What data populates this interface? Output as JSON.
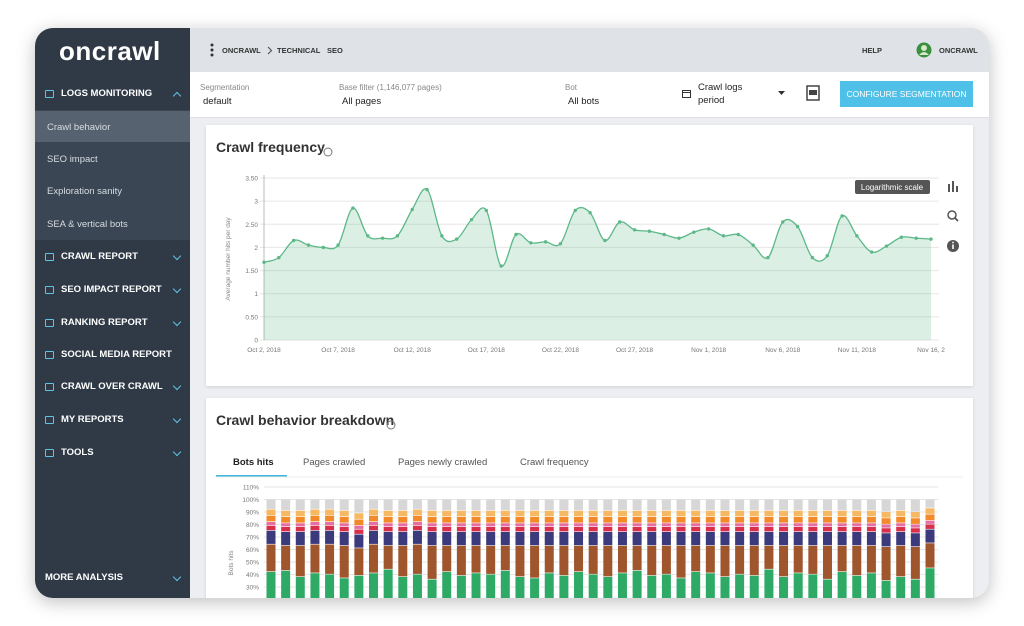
{
  "sidebar": {
    "logo": "oncrawl",
    "sections": [
      {
        "label": "LOGS MONITORING",
        "items": [
          "Crawl behavior",
          "SEO impact",
          "Exploration sanity",
          "SEA & vertical bots"
        ]
      },
      {
        "label": "CRAWL REPORT"
      },
      {
        "label": "SEO IMPACT REPORT"
      },
      {
        "label": "RANKING REPORT"
      },
      {
        "label": "SOCIAL MEDIA REPORT"
      },
      {
        "label": "CRAWL OVER CRAWL"
      },
      {
        "label": "MY REPORTS"
      },
      {
        "label": "TOOLS"
      }
    ],
    "footer": "MORE ANALYSIS"
  },
  "header": {
    "breadcrumb": [
      "ONCRAWL",
      "TECHNICAL",
      "SEO"
    ],
    "help": "HELP",
    "user": "ONCRAWL"
  },
  "filters": {
    "segmentation": {
      "label": "Segmentation",
      "value": "default"
    },
    "base_filter": {
      "label": "Base filter (1,146,077 pages)",
      "value": "All pages"
    },
    "bot": {
      "label": "Bot",
      "value": "All bots"
    },
    "period": "Crawl logs period",
    "button": "CONFIGURE SEGMENTATION"
  },
  "crawl_frequency": {
    "type": "line",
    "title": "Crawl frequency",
    "y_label": "Average number hits per day",
    "tooltip": "Logarithmic scale",
    "categories": [
      "Oct 2, 2018",
      null,
      null,
      null,
      null,
      "Oct 7, 2018",
      null,
      null,
      null,
      null,
      "Oct 12, 2018",
      null,
      null,
      null,
      null,
      "Oct 17, 2018",
      null,
      null,
      null,
      null,
      "Oct 22, 2018",
      null,
      null,
      null,
      null,
      "Oct 27, 2018",
      null,
      null,
      null,
      null,
      "Nov 1, 2018",
      null,
      null,
      null,
      null,
      "Nov 6, 2018",
      null,
      null,
      null,
      null,
      "Nov 11, 2018",
      null,
      null,
      null,
      null,
      "Nov 16, 2"
    ],
    "series": [
      {
        "color": "#5cb887",
        "values": [
          1.68,
          1.78,
          2.15,
          2.05,
          2.0,
          2.05,
          2.85,
          2.25,
          2.2,
          2.25,
          2.82,
          3.25,
          2.25,
          2.18,
          2.6,
          2.8,
          1.6,
          2.28,
          2.1,
          2.12,
          2.08,
          2.8,
          2.75,
          2.15,
          2.55,
          2.38,
          2.35,
          2.28,
          2.2,
          2.33,
          2.4,
          2.25,
          2.28,
          2.05,
          1.78,
          2.55,
          2.45,
          1.78,
          1.82,
          2.68,
          2.25,
          1.9,
          2.03,
          2.22,
          2.2,
          2.18
        ]
      }
    ],
    "ylim": [
      0,
      3.5
    ],
    "yticks": [
      0,
      {
        "value": 0.5,
        "label": "0.50"
      },
      1,
      {
        "value": 1.5,
        "label": "1.50"
      },
      2,
      {
        "value": 2.5,
        "label": "2.50"
      },
      3,
      {
        "value": 3.5,
        "label": "3.50"
      }
    ],
    "grid": true
  },
  "crawl_behavior_breakdown": {
    "type": "stacked_bar",
    "title": "Crawl behavior breakdown",
    "y_label": "Bots hits",
    "tabs": [
      "Bots hits",
      "Pages crawled",
      "Pages newly crawled",
      "Crawl frequency"
    ],
    "series": [
      {
        "color": "#2faa66",
        "values": [
          42,
          43,
          38,
          41,
          40,
          37,
          39,
          41,
          44,
          38,
          40,
          36,
          42,
          39,
          41,
          40,
          43,
          38,
          37,
          41,
          39,
          42,
          40,
          38,
          41,
          43,
          39,
          40,
          37,
          42,
          41,
          38,
          40,
          39,
          44,
          38,
          41,
          40,
          36,
          42,
          39,
          41,
          35,
          38,
          36,
          45
        ]
      },
      {
        "color": "#a0562c",
        "values": [
          22,
          20,
          25,
          23,
          24,
          26,
          22,
          23,
          19,
          25,
          24,
          27,
          21,
          24,
          22,
          23,
          20,
          25,
          26,
          22,
          24,
          21,
          23,
          25,
          22,
          20,
          24,
          23,
          26,
          21,
          22,
          25,
          23,
          24,
          19,
          25,
          22,
          23,
          27,
          21,
          24,
          22,
          27,
          25,
          26,
          20
        ]
      },
      {
        "color": "#3a3a7c",
        "values": [
          11,
          11,
          11,
          11,
          11,
          11,
          11,
          11,
          11,
          11,
          11,
          11,
          11,
          11,
          11,
          11,
          11,
          11,
          11,
          11,
          11,
          11,
          11,
          11,
          11,
          11,
          11,
          11,
          11,
          11,
          11,
          11,
          11,
          11,
          11,
          11,
          11,
          11,
          11,
          11,
          11,
          11,
          11,
          11,
          11,
          11
        ]
      },
      {
        "color": "#d8304c",
        "values": [
          4,
          4,
          4,
          4,
          4,
          4,
          4,
          4,
          4,
          4,
          4,
          4,
          4,
          4,
          4,
          4,
          4,
          4,
          4,
          4,
          4,
          4,
          4,
          4,
          4,
          4,
          4,
          4,
          4,
          4,
          4,
          4,
          4,
          4,
          4,
          4,
          4,
          4,
          4,
          4,
          4,
          4,
          4,
          4,
          4,
          4
        ]
      },
      {
        "color": "#e56ea2",
        "values": [
          3,
          3,
          3,
          3,
          3,
          3,
          3,
          3,
          3,
          3,
          3,
          3,
          3,
          3,
          3,
          3,
          3,
          3,
          3,
          3,
          3,
          3,
          3,
          3,
          3,
          3,
          3,
          3,
          3,
          3,
          3,
          3,
          3,
          3,
          3,
          3,
          3,
          3,
          3,
          3,
          3,
          3,
          3,
          3,
          3,
          3
        ]
      },
      {
        "color": "#f28a2a",
        "values": [
          5,
          5,
          5,
          5,
          5,
          5,
          5,
          5,
          5,
          5,
          5,
          5,
          5,
          5,
          5,
          5,
          5,
          5,
          5,
          5,
          5,
          5,
          5,
          5,
          5,
          5,
          5,
          5,
          5,
          5,
          5,
          5,
          5,
          5,
          5,
          5,
          5,
          5,
          5,
          5,
          5,
          5,
          5,
          5,
          5,
          5
        ]
      },
      {
        "color": "#f6b862",
        "values": [
          5,
          5,
          5,
          5,
          5,
          5,
          5,
          5,
          5,
          5,
          5,
          5,
          5,
          5,
          5,
          5,
          5,
          5,
          5,
          5,
          5,
          5,
          5,
          5,
          5,
          5,
          5,
          5,
          5,
          5,
          5,
          5,
          5,
          5,
          5,
          5,
          5,
          5,
          5,
          5,
          5,
          5,
          5,
          5,
          5,
          5
        ]
      },
      {
        "color": "#d7d7d7",
        "values": [
          8,
          9,
          9,
          8,
          8,
          9,
          11,
          8,
          9,
          9,
          8,
          9,
          9,
          9,
          9,
          9,
          9,
          9,
          9,
          9,
          9,
          9,
          9,
          9,
          9,
          9,
          9,
          9,
          9,
          9,
          9,
          9,
          9,
          9,
          9,
          9,
          9,
          9,
          9,
          9,
          9,
          9,
          10,
          9,
          10,
          7
        ]
      }
    ],
    "ylim": [
      0,
      110
    ],
    "yticks": [
      {
        "value": 30,
        "label": "30%"
      },
      {
        "value": 40,
        "label": "40%"
      },
      {
        "value": 50,
        "label": "50%"
      },
      {
        "value": 60,
        "label": "60%"
      },
      {
        "value": 70,
        "label": "70%"
      },
      {
        "value": 80,
        "label": "80%"
      },
      {
        "value": 90,
        "label": "90%"
      },
      {
        "value": 100,
        "label": "100%"
      },
      {
        "value": 110,
        "label": "110%"
      }
    ],
    "grid": true
  }
}
